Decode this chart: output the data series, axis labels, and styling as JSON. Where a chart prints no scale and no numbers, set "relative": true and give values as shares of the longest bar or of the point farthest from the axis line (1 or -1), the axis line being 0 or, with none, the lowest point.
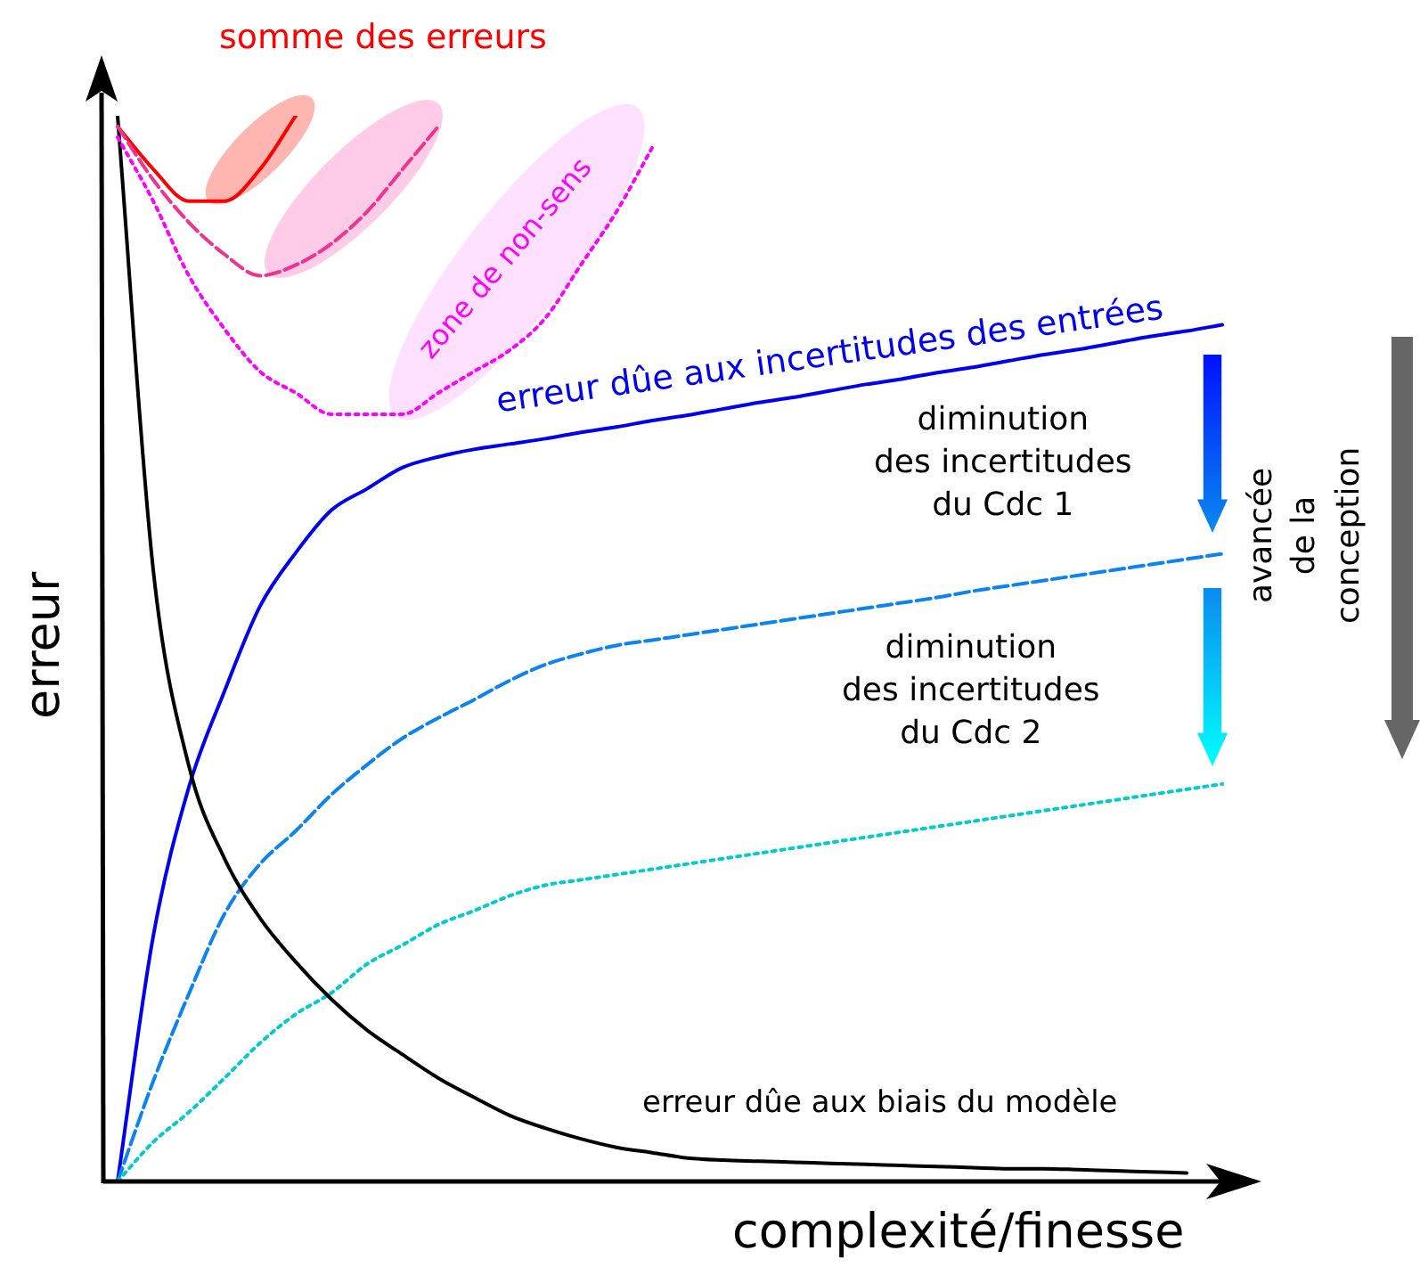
{
  "chart_data": {
    "type": "line",
    "relative": true,
    "legend": false,
    "marker": "none",
    "xlabel": "complexité/finesse",
    "ylabel": "erreur",
    "categories": [
      null,
      null,
      null,
      null,
      null,
      null,
      null,
      null,
      null,
      null,
      null,
      null,
      null,
      null,
      null,
      null,
      null,
      null,
      null,
      null,
      null,
      null,
      null,
      null,
      null,
      null,
      null,
      null,
      null,
      null,
      null,
      null
    ],
    "series": [
      {
        "name": "erreur dûe aux incertitudes des entrées",
        "color": "#0000ee",
        "line_style": "solid",
        "values": [
          0,
          0.23,
          0.37,
          0.46,
          0.54,
          0.59,
          0.63,
          0.65,
          0.67,
          0.68,
          0.687,
          0.692,
          0.697,
          0.703,
          0.708,
          0.714,
          0.719,
          0.725,
          0.731,
          0.736,
          0.742,
          0.748,
          0.753,
          0.759,
          0.764,
          0.77,
          0.776,
          0.781,
          0.787,
          0.793,
          0.798,
          0.804
        ]
      },
      {
        "color": "#0a84f0",
        "line_style": "dashed",
        "values": [
          0,
          0.094,
          0.176,
          0.251,
          0.298,
          0.329,
          0.363,
          0.391,
          0.416,
          0.435,
          0.452,
          0.47,
          0.485,
          0.495,
          0.503,
          0.508,
          0.513,
          0.518,
          0.523,
          0.528,
          0.533,
          0.538,
          0.543,
          0.548,
          0.554,
          0.559,
          0.564,
          0.569,
          0.574,
          0.579,
          0.584,
          0.589
        ]
      },
      {
        "color": "#00cccc",
        "line_style": "dotted",
        "values": [
          0,
          0.037,
          0.065,
          0.097,
          0.13,
          0.157,
          0.177,
          0.204,
          0.222,
          0.241,
          0.254,
          0.268,
          0.278,
          0.283,
          0.288,
          0.293,
          0.298,
          0.303,
          0.308,
          0.313,
          0.318,
          0.323,
          0.328,
          0.333,
          0.338,
          0.343,
          0.348,
          0.353,
          0.358,
          0.363,
          0.368,
          0.373
        ]
      },
      {
        "name": "erreur dûe aux biais du modèle",
        "color": "#000000",
        "line_style": "solid",
        "values": [
          1,
          0.574,
          0.39,
          0.303,
          0.247,
          0.206,
          0.171,
          0.142,
          0.119,
          0.097,
          0.079,
          0.062,
          0.05,
          0.04,
          0.032,
          0.027,
          0.022,
          0.02,
          0.019,
          0.018,
          0.017,
          0.016,
          0.015,
          0.014,
          0.013,
          0.012,
          0.012,
          0.011,
          0.01,
          0.009,
          0.008,
          null
        ]
      },
      {
        "color": "#ff0000",
        "line_style": "solid",
        "values": [
          0.99,
          0.95,
          0.92,
          0.92,
          0.95,
          1,
          null,
          null,
          null,
          null,
          null,
          null,
          null,
          null,
          null,
          null,
          null,
          null,
          null,
          null,
          null,
          null,
          null,
          null,
          null,
          null,
          null,
          null,
          null,
          null,
          null,
          null
        ]
      },
      {
        "color": "#f0338f",
        "line_style": "dashed",
        "values": [
          0.99,
          0.94,
          0.9,
          0.87,
          0.85,
          0.86,
          0.88,
          0.91,
          0.95,
          0.99,
          null,
          null,
          null,
          null,
          null,
          null,
          null,
          null,
          null,
          null,
          null,
          null,
          null,
          null,
          null,
          null,
          null,
          null,
          null,
          null,
          null,
          null
        ]
      },
      {
        "color": "#ff00ff",
        "line_style": "dotted",
        "values": [
          0.98,
          0.92,
          0.85,
          0.8,
          0.76,
          0.74,
          0.72,
          0.72,
          0.72,
          0.74,
          0.76,
          0.78,
          0.81,
          0.86,
          0.91,
          0.97,
          null,
          null,
          null,
          null,
          null,
          null,
          null,
          null,
          null,
          null,
          null,
          null,
          null,
          null,
          null,
          null
        ]
      }
    ],
    "annotations": [
      "somme des erreurs",
      "zone de non-sens",
      "diminution\ndes incertitudes\ndu Cdc 1",
      "diminution\ndes incertitudes\ndu Cdc 2",
      "avancée\nde la conception"
    ]
  }
}
